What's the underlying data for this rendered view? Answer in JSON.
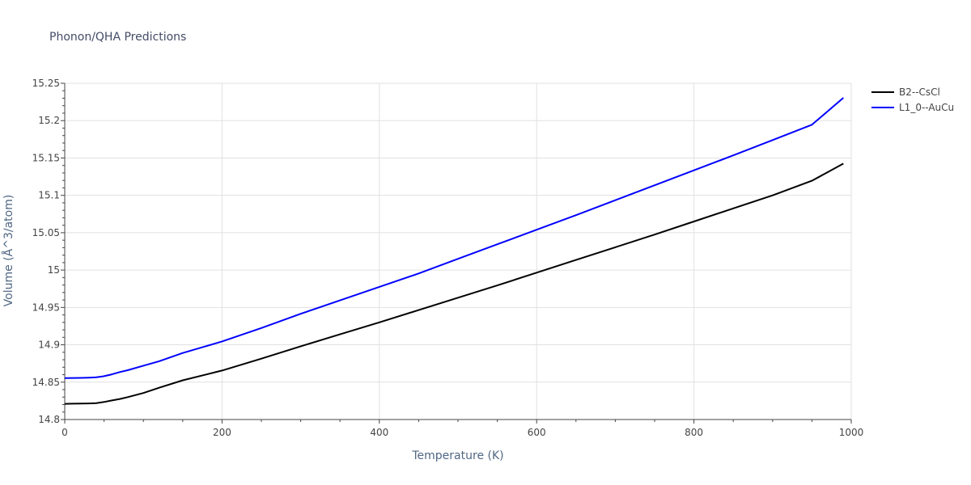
{
  "chart_data": {
    "type": "line",
    "title": "Phonon/QHA Predictions",
    "xlabel": "Temperature (K)",
    "ylabel": "Volume (Å^3/atom)",
    "xlim": [
      0,
      1000
    ],
    "ylim": [
      14.8,
      15.25
    ],
    "x_ticks": [
      0,
      200,
      400,
      600,
      800,
      1000
    ],
    "x_tick_labels": [
      "0",
      "200",
      "400",
      "600",
      "800",
      "1000"
    ],
    "y_ticks": [
      14.8,
      14.85,
      14.9,
      14.95,
      15.0,
      15.05,
      15.1,
      15.15,
      15.2,
      15.25
    ],
    "y_tick_labels": [
      "14.8",
      "14.85",
      "14.9",
      "14.95",
      "15",
      "15.05",
      "15.1",
      "15.15",
      "15.2",
      "15.25"
    ],
    "grid": true,
    "legend_position": "top-right",
    "series": [
      {
        "name": "B2--CsCl",
        "color": "#000000",
        "x": [
          0,
          10,
          20,
          30,
          40,
          50,
          60,
          70,
          80,
          100,
          120,
          150,
          200,
          250,
          300,
          350,
          400,
          450,
          500,
          550,
          600,
          650,
          700,
          750,
          800,
          850,
          900,
          950,
          990
        ],
        "y": [
          14.821,
          14.8212,
          14.8213,
          14.8215,
          14.822,
          14.8235,
          14.8255,
          14.8275,
          14.83,
          14.8355,
          14.8425,
          14.8525,
          14.8655,
          14.8815,
          14.898,
          14.914,
          14.93,
          14.9465,
          14.963,
          14.9795,
          14.9965,
          15.0135,
          15.0305,
          15.0475,
          15.065,
          15.0825,
          15.1,
          15.1195,
          15.1425
        ]
      },
      {
        "name": "L1_0--AuCu",
        "color": "#0000ff",
        "x": [
          0,
          10,
          20,
          30,
          40,
          50,
          60,
          70,
          80,
          100,
          120,
          150,
          200,
          250,
          300,
          350,
          400,
          450,
          500,
          550,
          600,
          650,
          700,
          750,
          800,
          850,
          900,
          950,
          990
        ],
        "y": [
          14.8555,
          14.8556,
          14.8557,
          14.856,
          14.8565,
          14.858,
          14.8605,
          14.8635,
          14.866,
          14.872,
          14.878,
          14.889,
          14.9045,
          14.9225,
          14.9415,
          14.9595,
          14.9775,
          14.9955,
          15.015,
          15.0345,
          15.054,
          15.0735,
          15.0935,
          15.1135,
          15.1335,
          15.1535,
          15.174,
          15.1945,
          15.2305
        ]
      }
    ]
  }
}
